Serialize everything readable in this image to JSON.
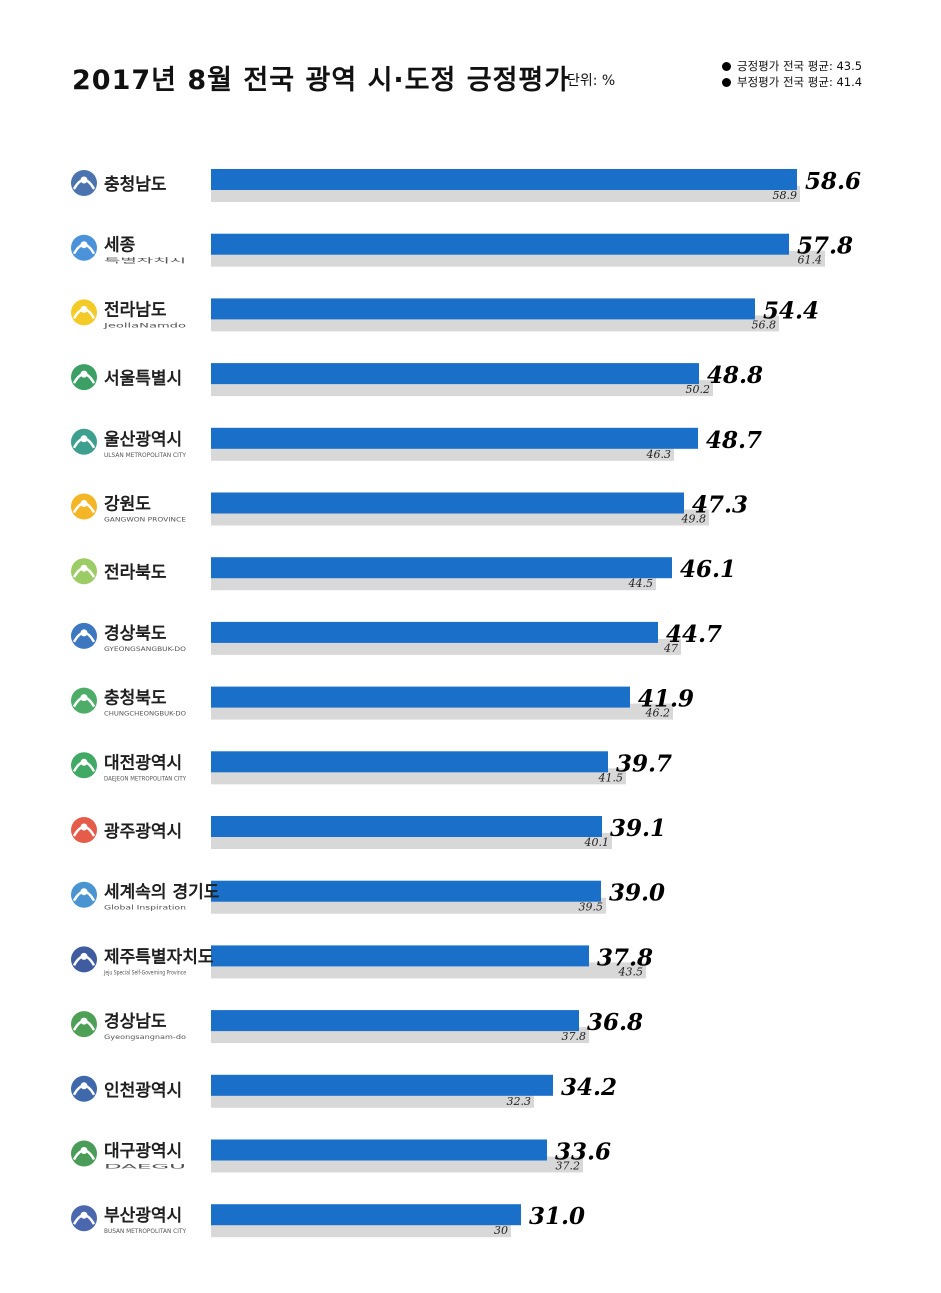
{
  "title": "2017년 8월 전국 광역 시·도정 긍정평가",
  "unit": "단위: %",
  "legend": {
    "positive_avg": "긍정평가 전국 평균: 43.5",
    "negative_avg": "부정평가 전국 평균: 41.4"
  },
  "chart_data": {
    "type": "bar",
    "orientation": "horizontal",
    "categories": [
      "충청남도",
      "세종특별자치시",
      "전라남도",
      "서울특별시",
      "울산광역시",
      "강원도",
      "전라북도",
      "경상북도",
      "충청북도",
      "대전광역시",
      "광주광역시",
      "경기도",
      "제주특별자치도",
      "경상남도",
      "인천광역시",
      "대구광역시",
      "부산광역시"
    ],
    "series": [
      {
        "values": [
          58.6,
          57.8,
          54.4,
          48.8,
          48.7,
          47.3,
          46.1,
          44.7,
          41.9,
          39.7,
          39.1,
          39.0,
          37.8,
          36.8,
          34.2,
          33.6,
          31.0
        ],
        "color": "#1a6fc9"
      },
      {
        "values": [
          58.9,
          61.4,
          56.8,
          50.2,
          46.3,
          49.8,
          44.5,
          47.0,
          46.2,
          41.5,
          40.1,
          39.5,
          43.5,
          37.8,
          32.3,
          37.2,
          30.0
        ],
        "color": "#d8d8d8"
      }
    ],
    "xlim": [
      0,
      60
    ]
  },
  "logos": [
    {
      "name": "충청남도",
      "sub": "",
      "icon": "flower-cluster-icon",
      "color": "#2c5aa0"
    },
    {
      "name": "세종",
      "sub": "특별자치시",
      "icon": "sejong-mountain-icon",
      "color": "#2a7fd4"
    },
    {
      "name": "전라남도",
      "sub": "JeollaNamdo",
      "icon": "jeonnam-sun-icon",
      "color": "#f2c200"
    },
    {
      "name": "서울특별시",
      "sub": "",
      "icon": "seoul-figure-icon",
      "color": "#1a8f4a"
    },
    {
      "name": "울산광역시",
      "sub": "ULSAN METROPOLITAN CITY",
      "icon": "ulsan-wave-icon",
      "color": "#1b8f7a"
    },
    {
      "name": "강원도",
      "sub": "GANGWON PROVINCE",
      "icon": "gangwon-icon",
      "color": "#f2a900"
    },
    {
      "name": "전라북도",
      "sub": "",
      "icon": "jeonbuk-leaf-icon",
      "color": "#8bc34a"
    },
    {
      "name": "경상북도",
      "sub": "GYEONGSANGBUK-DO",
      "icon": "gyeongbuk-wave-icon",
      "color": "#1a5fb4"
    },
    {
      "name": "충청북도",
      "sub": "CHUNGCHEONGBUK-DO",
      "icon": "chungbuk-mountain-icon",
      "color": "#2e9d4e"
    },
    {
      "name": "대전광역시",
      "sub": "DAEJEON METROPOLITAN CITY",
      "icon": "daejeon-star-icon",
      "color": "#1f9a4a"
    },
    {
      "name": "광주광역시",
      "sub": "",
      "icon": "gwangju-sun-icon",
      "color": "#e2402b"
    },
    {
      "name": "세계속의 경기도",
      "sub": "Global Inspiration",
      "icon": "gyeonggi-square-icon",
      "color": "#2a82c9"
    },
    {
      "name": "제주특별자치도",
      "sub": "Jeju Special Self-Governing Province",
      "icon": "jeju-wordmark-icon",
      "color": "#1d3f8f"
    },
    {
      "name": "경상남도",
      "sub": "Gyeongsangnam-do",
      "icon": "gyeongnam-circle-icon",
      "color": "#2f8f3a"
    },
    {
      "name": "인천광역시",
      "sub": "",
      "icon": "incheon-swirl-icon",
      "color": "#1d4f9c"
    },
    {
      "name": "대구광역시",
      "sub": "DAEGU",
      "icon": "daegu-mountain-icon",
      "color": "#2d8b3c"
    },
    {
      "name": "부산광역시",
      "sub": "BUSAN METROPOLITAN CITY",
      "icon": "busan-wave-icon",
      "color": "#2c4ea0"
    }
  ]
}
